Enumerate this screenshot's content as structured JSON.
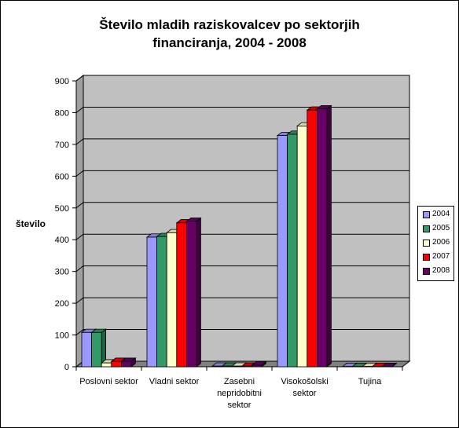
{
  "chart_data": {
    "type": "bar",
    "title_lines": [
      "Število mladih raziskovalcev po sektorjih",
      "financiranja, 2004 - 2008"
    ],
    "ylabel": "število",
    "xlabel": "",
    "ylim": [
      0,
      900
    ],
    "yticks": [
      0,
      100,
      200,
      300,
      400,
      500,
      600,
      700,
      800,
      900
    ],
    "categories": [
      [
        "Poslovni sektor"
      ],
      [
        "Vladni sektor"
      ],
      [
        "Zasebni",
        "nepridobitni",
        "sektor"
      ],
      [
        "Visokošolski",
        "sektor"
      ],
      [
        "Tujina"
      ]
    ],
    "series": [
      {
        "name": "2004",
        "color": "#9999ff",
        "values": [
          108,
          408,
          2,
          728,
          1
        ]
      },
      {
        "name": "2005",
        "color": "#339966",
        "values": [
          108,
          410,
          2,
          732,
          1
        ]
      },
      {
        "name": "2006",
        "color": "#ffffcc",
        "values": [
          12,
          422,
          2,
          758,
          1
        ]
      },
      {
        "name": "2007",
        "color": "#ff0000",
        "values": [
          17,
          453,
          2,
          808,
          1
        ]
      },
      {
        "name": "2008",
        "color": "#660066",
        "values": [
          17,
          458,
          5,
          812,
          1
        ]
      }
    ],
    "grid": true,
    "legend_position": "right",
    "plot_background": "#c0c0c0",
    "style": "3d-clustered-column"
  }
}
